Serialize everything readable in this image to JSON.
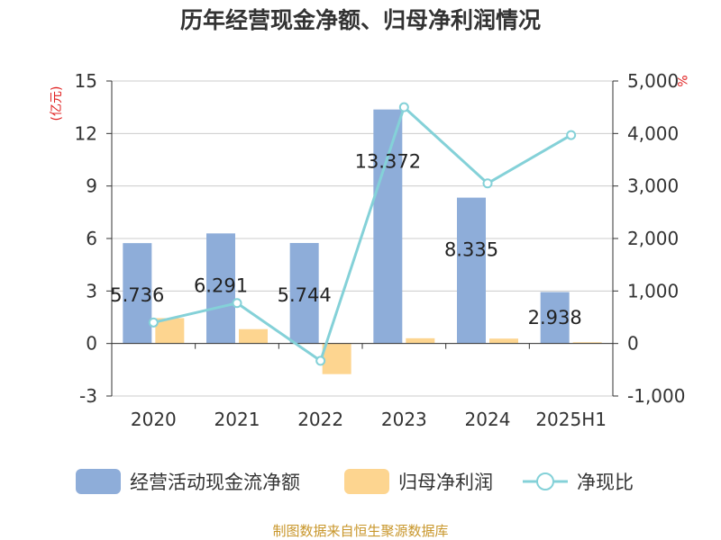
{
  "chart_data": {
    "type": "bar",
    "title": "历年经营现金净额、归母净利润情况",
    "categories": [
      "2020",
      "2021",
      "2022",
      "2023",
      "2024",
      "2025H1"
    ],
    "series": [
      {
        "name": "经营活动现金流净额",
        "type": "bar",
        "axis": "left",
        "color": "#8eadd9",
        "values": [
          5.736,
          6.291,
          5.744,
          13.372,
          8.335,
          2.938
        ]
      },
      {
        "name": "归母净利润",
        "type": "bar",
        "axis": "left",
        "color": "#fdd590",
        "values": [
          1.45,
          0.82,
          -1.75,
          0.3,
          0.28,
          0.07
        ]
      },
      {
        "name": "净现比",
        "type": "line",
        "axis": "right",
        "color": "#84d1d8",
        "values": [
          400,
          770,
          -330,
          4500,
          3050,
          3970
        ]
      }
    ],
    "data_labels": [
      "5.736",
      "6.291",
      "5.744",
      "13.372",
      "8.335",
      "2.938"
    ],
    "y_left": {
      "label": "(亿元)",
      "ylim": [
        -3,
        15
      ],
      "ticks": [
        -3,
        0,
        3,
        6,
        9,
        12,
        15
      ],
      "tick_labels": [
        "-3",
        "0",
        "3",
        "6",
        "9",
        "12",
        "15"
      ]
    },
    "y_right": {
      "label": "%",
      "ylim": [
        -1000,
        5000
      ],
      "ticks": [
        -1000,
        0,
        1000,
        2000,
        3000,
        4000,
        5000
      ],
      "tick_labels": [
        "-1,000",
        "0",
        "1,000",
        "2,000",
        "3,000",
        "4,000",
        "5,000"
      ]
    },
    "grid": true,
    "legend_position": "bottom"
  },
  "source": "制图数据来自恒生聚源数据库",
  "colors": {
    "axis_label": "#e02020",
    "source": "#c8962a",
    "grid": "#cccccc",
    "axis": "#333333"
  }
}
